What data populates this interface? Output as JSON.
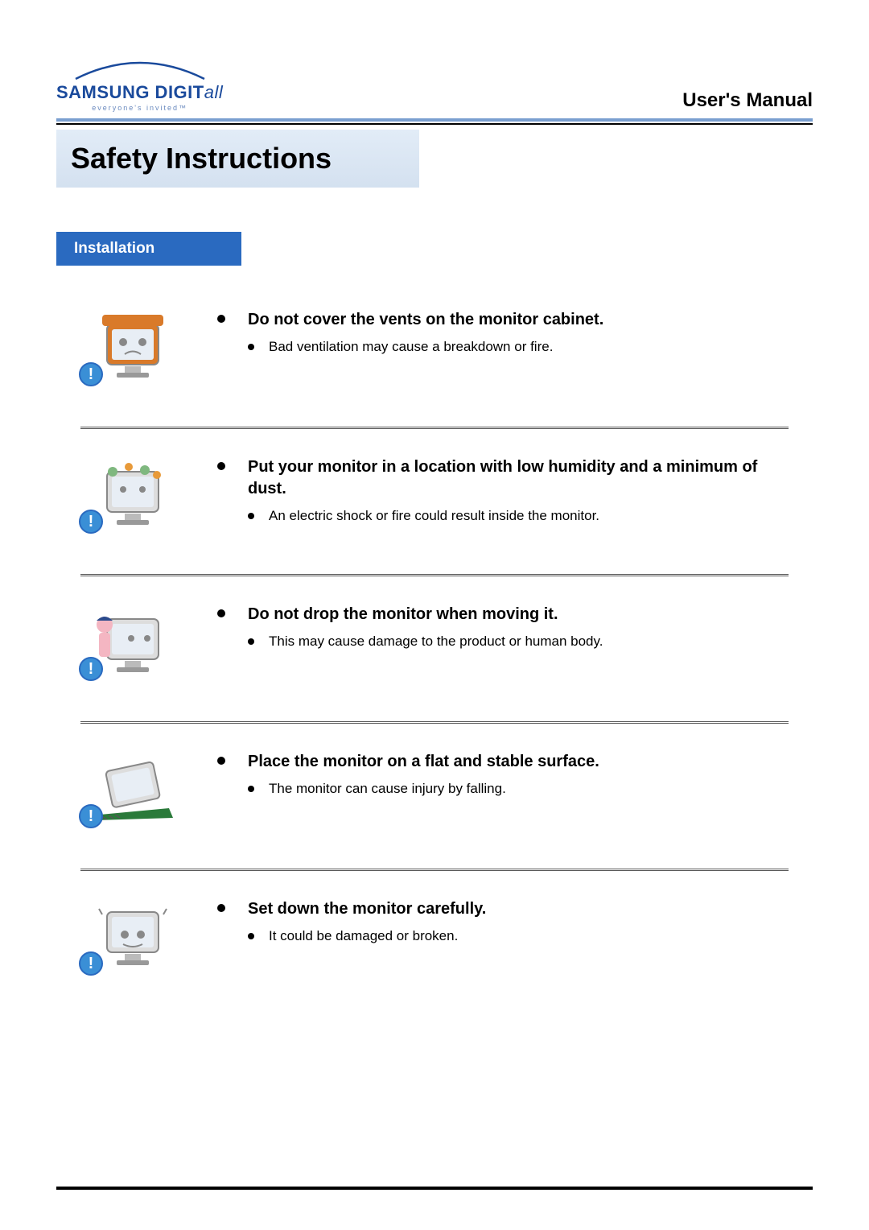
{
  "header": {
    "logo_main": "SAMSUNG DIGIT",
    "logo_suffix": "all",
    "logo_tagline": "everyone's invited™",
    "manual_title": "User's Manual"
  },
  "section": {
    "title": "Safety Instructions",
    "subsection": "Installation"
  },
  "items": [
    {
      "heading": "Do not cover the vents on the monitor cabinet.",
      "detail": "Bad ventilation may cause a breakdown or fire.",
      "icon_variant": "covered",
      "icon_colors": {
        "frame": "#d97a2a",
        "screen": "#e8eef5",
        "face": "#888888"
      }
    },
    {
      "heading": "Put your monitor in a location with low humidity and a minimum of dust.",
      "detail": "An electric shock or fire could result inside the monitor.",
      "icon_variant": "dusty",
      "icon_colors": {
        "frame": "#dddddd",
        "screen": "#e8eef5",
        "dots": "#7fb87f"
      }
    },
    {
      "heading": "Do not drop the monitor when moving it.",
      "detail": "This may cause damage to the product or human body.",
      "icon_variant": "carry",
      "icon_colors": {
        "frame": "#dddddd",
        "screen": "#e8eef5",
        "person": "#f4b6c2",
        "cap": "#2a4a8c"
      }
    },
    {
      "heading": "Place the monitor on a flat and stable surface.",
      "detail": "The monitor can cause injury by falling.",
      "icon_variant": "tilt",
      "icon_colors": {
        "frame": "#dddddd",
        "screen": "#e8eef5",
        "surface": "#2a7a3a"
      }
    },
    {
      "heading": "Set down the monitor carefully.",
      "detail": "It could be damaged or broken.",
      "icon_variant": "setdown",
      "icon_colors": {
        "frame": "#dddddd",
        "screen": "#e8eef5"
      }
    }
  ],
  "colors": {
    "accent_blue": "#2a6ac0",
    "header_bar": "#7a9fd0",
    "section_bg": "#d9e5f3",
    "text": "#000000",
    "badge": "#3a8fd6"
  },
  "typography": {
    "section_title_pt": 36,
    "subsection_pt": 19,
    "heading_pt": 20,
    "detail_pt": 17,
    "manual_title_pt": 24
  }
}
